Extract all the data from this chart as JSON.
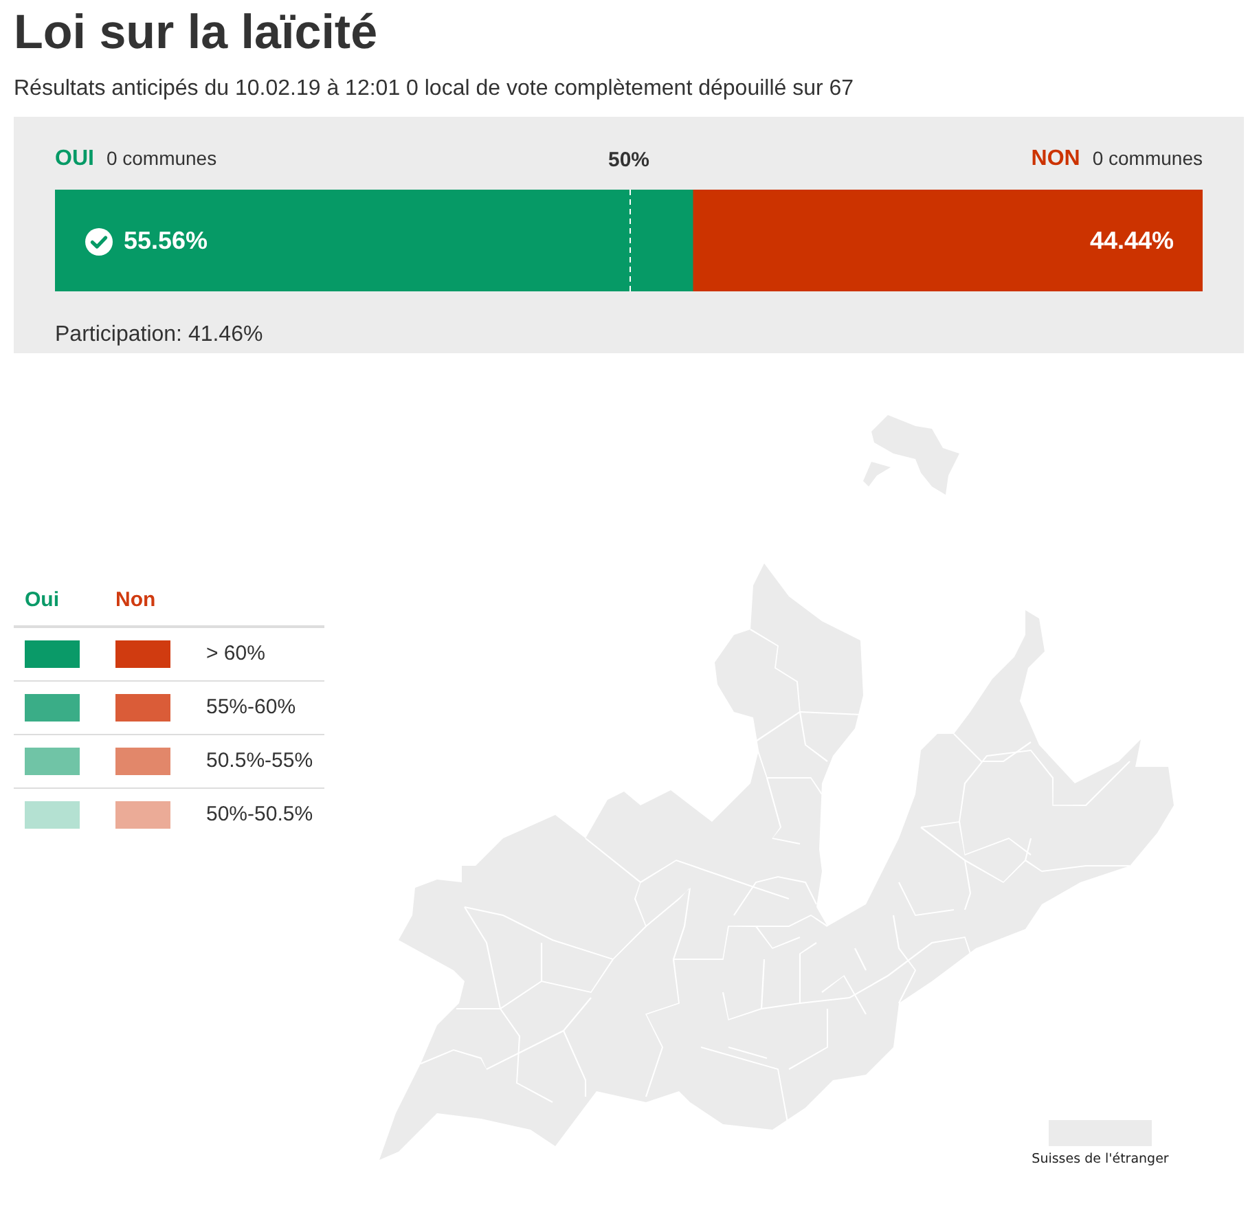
{
  "chart_data": [
    {
      "type": "bar",
      "title": "Loi sur la laïcité",
      "subtitle": "Résultats anticipés du 10.02.19 à 12:01 0 local de vote complètement dépouillé sur 67",
      "orientation": "horizontal",
      "stacked": true,
      "categories": [
        null
      ],
      "series": [
        {
          "name": "OUI",
          "color": "#069a66",
          "values": [
            55.56
          ],
          "value_labels": [
            "55.56%"
          ]
        },
        {
          "name": "NON",
          "color": "#cc3300",
          "values": [
            44.44
          ],
          "value_labels": [
            "44.44%"
          ]
        }
      ],
      "xlim": [
        0,
        100
      ],
      "ref_lines": [
        {
          "axis": "x",
          "value": 50,
          "label": "50%",
          "color": "#ffffff",
          "line_style": "dashed"
        }
      ],
      "annotations": [
        "0 communes",
        "0 communes",
        "Participation: 41.46%"
      ],
      "tick_labels": false,
      "legend": false,
      "grid": false
    },
    {
      "type": "other",
      "categories": [
        "> 60%",
        "55%-60%",
        "50.5%-55%",
        "50%-50.5%"
      ],
      "series": [
        {
          "name": "Oui",
          "colors": [
            "#0a9a68",
            "#3aad87",
            "#70c4a6",
            "#b4e1d2"
          ],
          "values": [
            null,
            null,
            null,
            null
          ]
        },
        {
          "name": "Non",
          "colors": [
            "#d03b10",
            "#da5c38",
            "#e2876a",
            "#ebab97"
          ],
          "values": [
            null,
            null,
            null,
            null
          ]
        }
      ],
      "annotations": [
        "Suisses de l'étranger"
      ]
    }
  ]
}
